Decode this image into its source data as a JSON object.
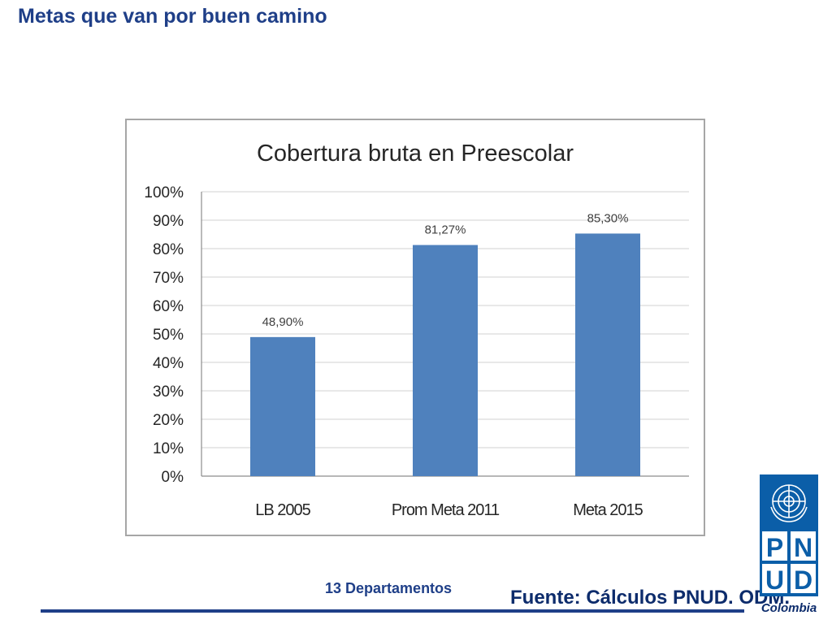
{
  "slide": {
    "title": "Metas que van por buen camino",
    "note": "13 Departamentos",
    "source": "Fuente: Cálculos PNUD. ODM.",
    "logo": {
      "letters": [
        "P",
        "N",
        "U",
        "D"
      ],
      "caption": "Colombia",
      "icon": "un-emblem-icon"
    }
  },
  "colors": {
    "bar": "#4f81bd",
    "title": "#1f3f88",
    "grid": "#d9d9d9",
    "logo": "#0b5ea8"
  },
  "chart_data": {
    "type": "bar",
    "title": "Cobertura bruta en Preescolar",
    "categories": [
      "LB 2005",
      "Prom Meta 2011",
      "Meta 2015"
    ],
    "values": [
      48.9,
      81.27,
      85.3
    ],
    "data_labels": [
      "48,90%",
      "81,27%",
      "85,30%"
    ],
    "ylim": [
      0,
      100
    ],
    "yticks": [
      0,
      10,
      20,
      30,
      40,
      50,
      60,
      70,
      80,
      90,
      100
    ],
    "ytick_labels": [
      "0%",
      "10%",
      "20%",
      "30%",
      "40%",
      "50%",
      "60%",
      "70%",
      "80%",
      "90%",
      "100%"
    ],
    "xlabel": "",
    "ylabel": "",
    "grid": true,
    "legend": "none"
  }
}
